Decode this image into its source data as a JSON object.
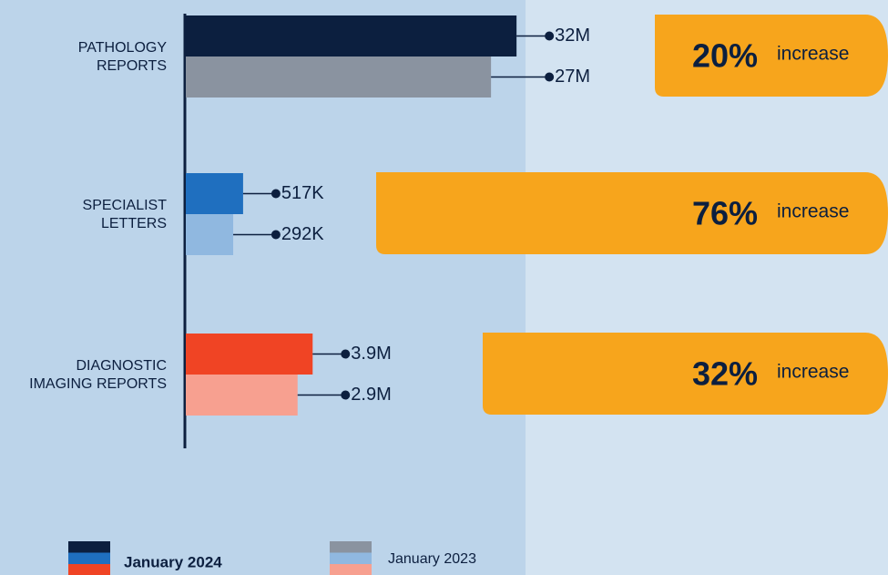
{
  "chart_data": {
    "type": "bar",
    "categories": [
      [
        "PATHOLOGY",
        "REPORTS"
      ],
      [
        "SPECIALIST",
        "LETTERS"
      ],
      [
        "DIAGNOSTIC",
        "IMAGING REPORTS"
      ]
    ],
    "series": [
      {
        "name": "January 2024",
        "color": [
          "#0c1f3f",
          "#1f6fbf",
          "#f04424"
        ],
        "values": [
          32000000,
          517000,
          3900000
        ],
        "value_labels": [
          "32M",
          "517K",
          "3.9M"
        ]
      },
      {
        "name": "January 2023",
        "color": [
          "#8a93a0",
          "#90b8e0",
          "#f7a090"
        ],
        "values": [
          27000000,
          292000,
          2900000
        ],
        "value_labels": [
          "27M",
          "292K",
          "2.9M"
        ]
      }
    ],
    "increases": {
      "values": [
        20,
        76,
        32
      ],
      "value_labels": [
        "20%",
        "76%",
        "32%"
      ],
      "text": "increase",
      "color": "#f7a51c"
    }
  }
}
